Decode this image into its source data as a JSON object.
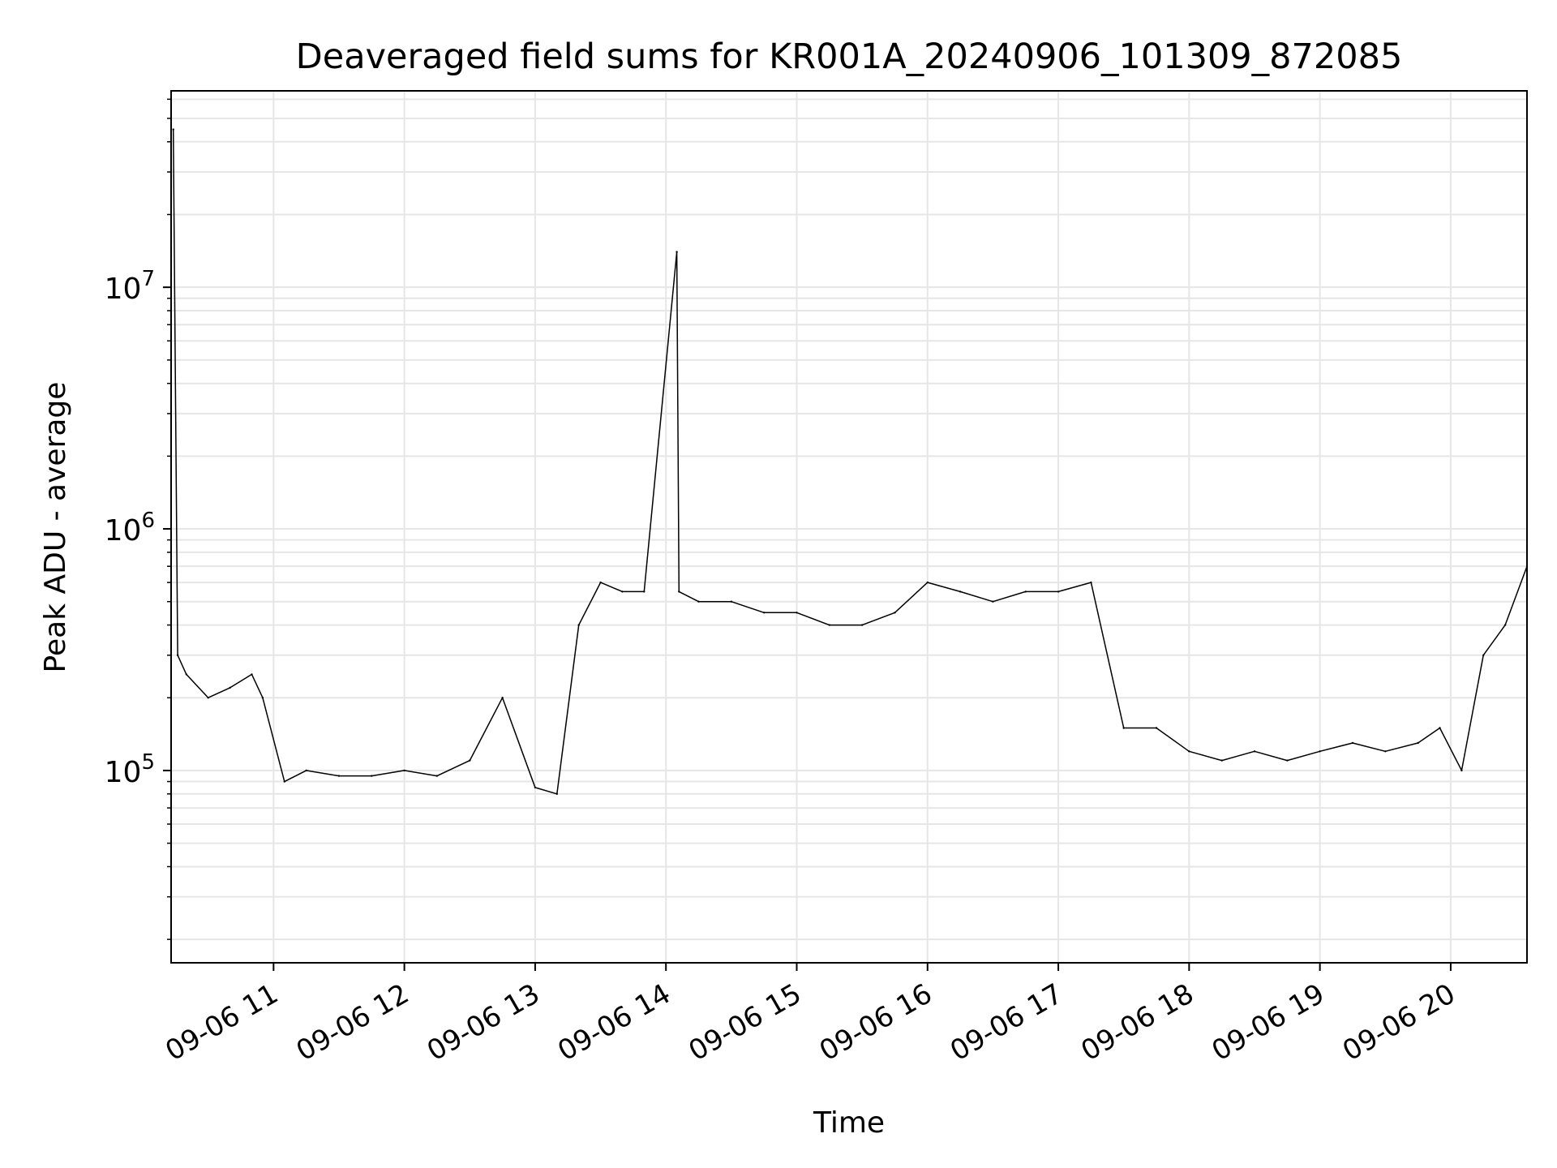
{
  "chart_data": {
    "type": "line",
    "title": "Deaveraged field sums for KR001A_20240906_101309_872085",
    "xlabel": "Time",
    "ylabel": "Peak ADU - average",
    "y_scale": "log",
    "ylim": [
      16000,
      65000000
    ],
    "xlim": [
      "2024-09-06T10:13",
      "2024-09-06T20:35"
    ],
    "grid": "major and minor, light gray",
    "legend": "none",
    "line_color": "#000000",
    "x_ticks": [
      {
        "label": "09-06 11",
        "time": "2024-09-06T11:00"
      },
      {
        "label": "09-06 12",
        "time": "2024-09-06T12:00"
      },
      {
        "label": "09-06 13",
        "time": "2024-09-06T13:00"
      },
      {
        "label": "09-06 14",
        "time": "2024-09-06T14:00"
      },
      {
        "label": "09-06 15",
        "time": "2024-09-06T15:00"
      },
      {
        "label": "09-06 16",
        "time": "2024-09-06T16:00"
      },
      {
        "label": "09-06 17",
        "time": "2024-09-06T17:00"
      },
      {
        "label": "09-06 18",
        "time": "2024-09-06T18:00"
      },
      {
        "label": "09-06 19",
        "time": "2024-09-06T19:00"
      },
      {
        "label": "09-06 20",
        "time": "2024-09-06T20:00"
      }
    ],
    "y_ticks": [
      {
        "base": "10",
        "exp": "5",
        "value": 100000
      },
      {
        "base": "10",
        "exp": "6",
        "value": 1000000
      },
      {
        "base": "10",
        "exp": "7",
        "value": 10000000
      }
    ],
    "series": [
      {
        "x": [
          "2024-09-06T10:14",
          "2024-09-06T10:16",
          "2024-09-06T10:20",
          "2024-09-06T10:30",
          "2024-09-06T10:40",
          "2024-09-06T10:50",
          "2024-09-06T10:55",
          "2024-09-06T11:05",
          "2024-09-06T11:15",
          "2024-09-06T11:30",
          "2024-09-06T11:45",
          "2024-09-06T12:00",
          "2024-09-06T12:15",
          "2024-09-06T12:30",
          "2024-09-06T12:45",
          "2024-09-06T13:00",
          "2024-09-06T13:10",
          "2024-09-06T13:20",
          "2024-09-06T13:30",
          "2024-09-06T13:40",
          "2024-09-06T13:50",
          "2024-09-06T14:05",
          "2024-09-06T14:06",
          "2024-09-06T14:15",
          "2024-09-06T14:30",
          "2024-09-06T14:45",
          "2024-09-06T15:00",
          "2024-09-06T15:15",
          "2024-09-06T15:30",
          "2024-09-06T15:45",
          "2024-09-06T16:00",
          "2024-09-06T16:15",
          "2024-09-06T16:30",
          "2024-09-06T16:45",
          "2024-09-06T17:00",
          "2024-09-06T17:15",
          "2024-09-06T17:30",
          "2024-09-06T17:45",
          "2024-09-06T18:00",
          "2024-09-06T18:15",
          "2024-09-06T18:30",
          "2024-09-06T18:45",
          "2024-09-06T19:00",
          "2024-09-06T19:15",
          "2024-09-06T19:30",
          "2024-09-06T19:45",
          "2024-09-06T19:55",
          "2024-09-06T20:05",
          "2024-09-06T20:15",
          "2024-09-06T20:25",
          "2024-09-06T20:35"
        ],
        "values": [
          45000000,
          300000,
          250000,
          200000,
          220000,
          250000,
          200000,
          90000,
          100000,
          95000,
          95000,
          100000,
          95000,
          110000,
          200000,
          85000,
          80000,
          400000,
          600000,
          550000,
          550000,
          14000000,
          550000,
          500000,
          500000,
          450000,
          450000,
          400000,
          400000,
          450000,
          600000,
          550000,
          500000,
          550000,
          550000,
          600000,
          150000,
          150000,
          120000,
          110000,
          120000,
          110000,
          120000,
          130000,
          120000,
          130000,
          150000,
          100000,
          300000,
          400000,
          700000
        ]
      }
    ]
  }
}
